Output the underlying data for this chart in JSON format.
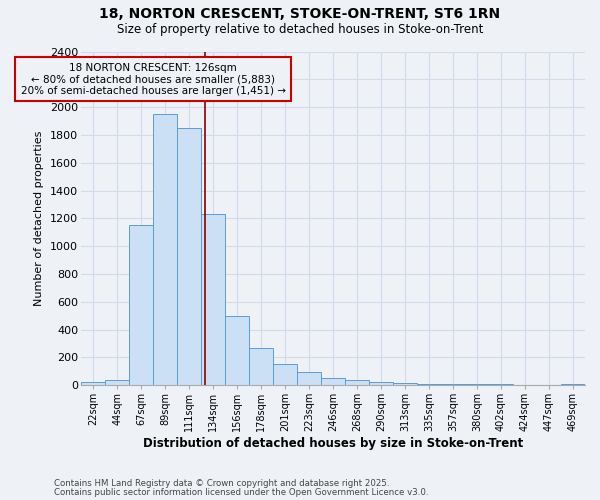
{
  "title_line1": "18, NORTON CRESCENT, STOKE-ON-TRENT, ST6 1RN",
  "title_line2": "Size of property relative to detached houses in Stoke-on-Trent",
  "xlabel": "Distribution of detached houses by size in Stoke-on-Trent",
  "ylabel": "Number of detached properties",
  "categories": [
    "22sqm",
    "44sqm",
    "67sqm",
    "89sqm",
    "111sqm",
    "134sqm",
    "156sqm",
    "178sqm",
    "201sqm",
    "223sqm",
    "246sqm",
    "268sqm",
    "290sqm",
    "313sqm",
    "335sqm",
    "357sqm",
    "380sqm",
    "402sqm",
    "424sqm",
    "447sqm",
    "469sqm"
  ],
  "values": [
    20,
    35,
    1150,
    1950,
    1850,
    1230,
    500,
    270,
    155,
    95,
    50,
    35,
    20,
    15,
    10,
    8,
    5,
    5,
    3,
    2,
    5
  ],
  "bar_facecolor": "#cce0f5",
  "bar_edgecolor": "#5b9bd5",
  "grid_color": "#d0dce8",
  "vline_x": 4.68,
  "vline_color": "#8b0000",
  "annotation_title": "18 NORTON CRESCENT: 126sqm",
  "annotation_line1": "← 80% of detached houses are smaller (5,883)",
  "annotation_line2": "20% of semi-detached houses are larger (1,451) →",
  "annotation_box_edgecolor": "#cc0000",
  "ylim": [
    0,
    2400
  ],
  "yticks": [
    0,
    200,
    400,
    600,
    800,
    1000,
    1200,
    1400,
    1600,
    1800,
    2000,
    2200,
    2400
  ],
  "footnote1": "Contains HM Land Registry data © Crown copyright and database right 2025.",
  "footnote2": "Contains public sector information licensed under the Open Government Licence v3.0.",
  "bg_color": "#eef2f7"
}
